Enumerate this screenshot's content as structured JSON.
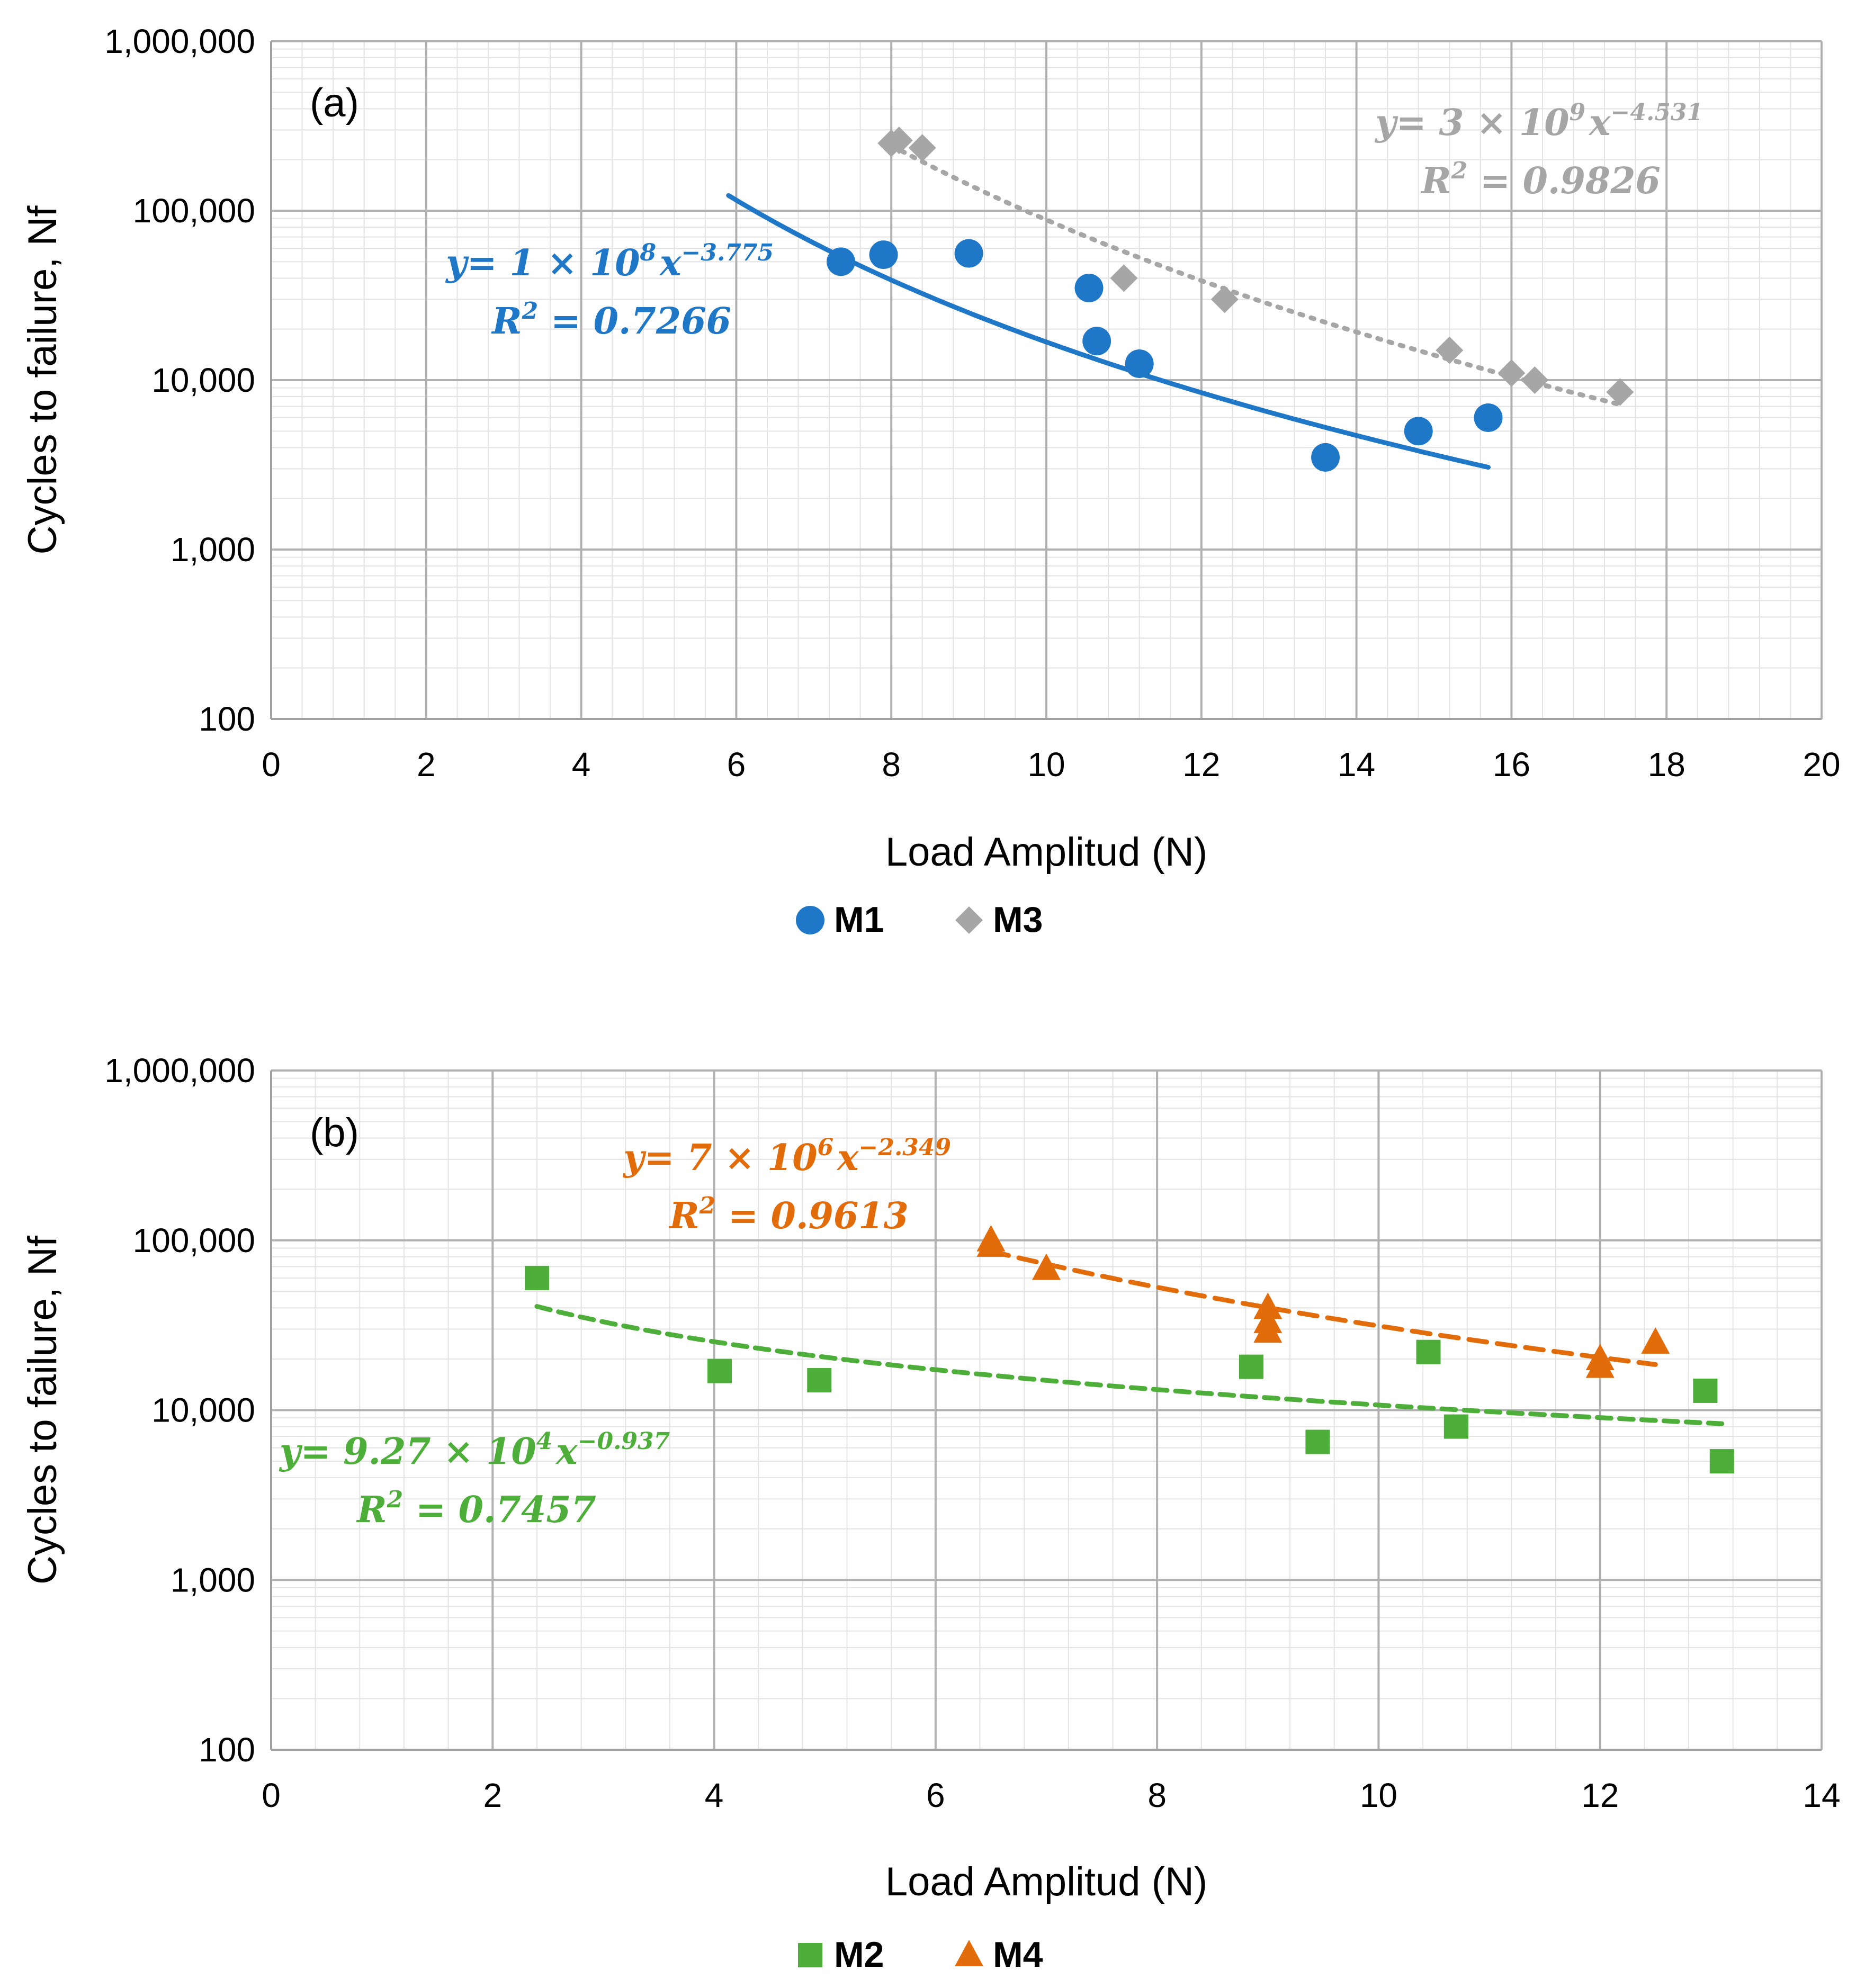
{
  "chart_data": [
    {
      "panel_label": "(a)",
      "type": "scatter",
      "xscale": "linear",
      "yscale": "log",
      "xlabel": "Load Amplitud (N)",
      "ylabel": "Cycles to failure, Nf",
      "xlim": [
        0,
        20
      ],
      "ylim": [
        100,
        1000000
      ],
      "x_ticks": [
        0,
        2,
        4,
        6,
        8,
        10,
        12,
        14,
        16,
        18,
        20
      ],
      "y_tick_values": [
        100,
        1000,
        10000,
        100000,
        1000000
      ],
      "y_tick_labels": [
        "100",
        "1,000",
        "10,000",
        "100,000",
        "1,000,000"
      ],
      "grid": true,
      "legend_position": "bottom-center",
      "series": [
        {
          "name": "M1",
          "marker": "circle",
          "color": "#1f77c8",
          "points": [
            [
              7.35,
              50000
            ],
            [
              7.9,
              55000
            ],
            [
              9.0,
              56000
            ],
            [
              10.55,
              35000
            ],
            [
              10.65,
              17000
            ],
            [
              11.2,
              12500
            ],
            [
              13.6,
              3500
            ],
            [
              14.8,
              5000
            ],
            [
              15.7,
              6000
            ]
          ],
          "trendline": {
            "style": "solid",
            "a": 100000000,
            "b": -3.775,
            "x_range": [
              5.9,
              15.7
            ],
            "equation": {
              "y_label": "y",
              "times": "= 1 × 10",
              "exp": "8",
              "x_label": "x",
              "x_exp": "−3.775",
              "r2_label": "R",
              "r2_sup": "2",
              "r2_value": "= 0.7266"
            }
          }
        },
        {
          "name": "M3",
          "marker": "diamond",
          "color": "#a6a6a6",
          "points": [
            [
              8.0,
              250000
            ],
            [
              8.1,
              260000
            ],
            [
              8.4,
              235000
            ],
            [
              11.0,
              40000
            ],
            [
              12.3,
              30000
            ],
            [
              15.2,
              15000
            ],
            [
              16.0,
              11000
            ],
            [
              16.3,
              10000
            ],
            [
              17.4,
              8500
            ]
          ],
          "trendline": {
            "style": "dotted",
            "a": 3000000000,
            "b": -4.531,
            "x_range": [
              8.0,
              17.4
            ],
            "equation": {
              "y_label": "y",
              "times": "= 3 × 10",
              "exp": "9",
              "x_label": "x",
              "x_exp": "−4.531",
              "r2_label": "R",
              "r2_sup": "2",
              "r2_value": "= 0.9826"
            }
          }
        }
      ]
    },
    {
      "panel_label": "(b)",
      "type": "scatter",
      "xscale": "linear",
      "yscale": "log",
      "xlabel": "Load Amplitud (N)",
      "ylabel": "Cycles to failure, Nf",
      "xlim": [
        0,
        14
      ],
      "ylim": [
        100,
        1000000
      ],
      "x_ticks": [
        0,
        2,
        4,
        6,
        8,
        10,
        12,
        14
      ],
      "y_tick_values": [
        100,
        1000,
        10000,
        100000,
        1000000
      ],
      "y_tick_labels": [
        "100",
        "1,000",
        "10,000",
        "100,000",
        "1,000,000"
      ],
      "grid": true,
      "legend_position": "bottom-center",
      "series": [
        {
          "name": "M2",
          "marker": "square",
          "color": "#4daf3a",
          "points": [
            [
              2.4,
              60000
            ],
            [
              4.05,
              17000
            ],
            [
              4.95,
              15000
            ],
            [
              8.85,
              18000
            ],
            [
              9.45,
              6500
            ],
            [
              10.45,
              22000
            ],
            [
              10.7,
              8000
            ],
            [
              12.95,
              13000
            ],
            [
              13.1,
              5000
            ]
          ],
          "trendline": {
            "style": "dashed-short",
            "a": 92700,
            "b": -0.937,
            "x_range": [
              2.4,
              13.1
            ],
            "equation": {
              "y_label": "y",
              "times": "= 9.27 × 10",
              "exp": "4",
              "x_label": "x",
              "x_exp": "−0.937",
              "r2_label": "R",
              "r2_sup": "2",
              "r2_value": "= 0.7457"
            }
          }
        },
        {
          "name": "M4",
          "marker": "triangle",
          "color": "#e36c0a",
          "points": [
            [
              6.5,
              100000
            ],
            [
              6.5,
              93000
            ],
            [
              7.0,
              68000
            ],
            [
              9.0,
              40000
            ],
            [
              9.0,
              33000
            ],
            [
              9.0,
              29000
            ],
            [
              12.0,
              20000
            ],
            [
              12.0,
              18000
            ],
            [
              12.5,
              25000
            ]
          ],
          "trendline": {
            "style": "dashed",
            "a": 7000000,
            "b": -2.349,
            "x_range": [
              6.5,
              12.5
            ],
            "equation": {
              "y_label": "y",
              "times": "= 7 × 10",
              "exp": "6",
              "x_label": "x",
              "x_exp": "−2.349",
              "r2_label": "R",
              "r2_sup": "2",
              "r2_value": "= 0.9613"
            }
          }
        }
      ]
    }
  ]
}
